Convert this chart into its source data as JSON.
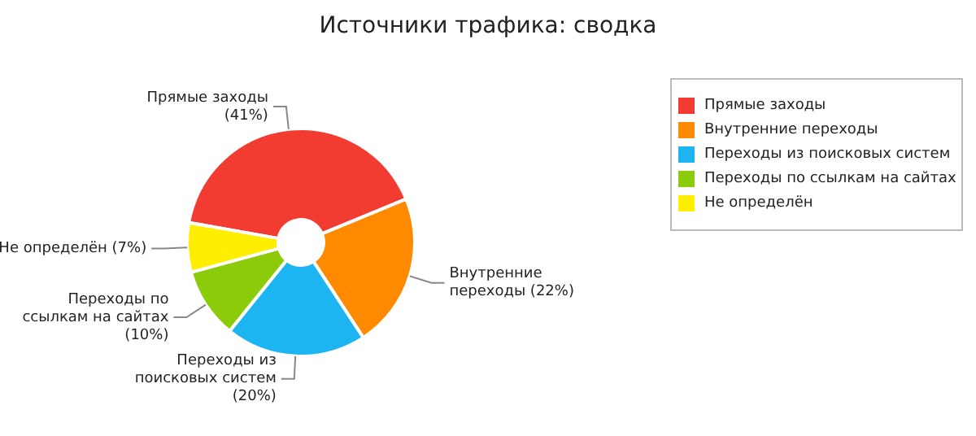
{
  "chart_data": {
    "type": "donut",
    "title": "Источники трафика: сводка",
    "categories": [
      "Прямые заходы",
      "Внутренние переходы",
      "Переходы из поисковых систем",
      "Переходы по ссылкам на сайтах",
      "Не определён"
    ],
    "values": [
      41,
      22,
      20,
      10,
      7
    ],
    "value_labels": [
      "(41%)",
      "(22%)",
      "(20%)",
      "(10%)",
      "(7%)"
    ],
    "colors": [
      "#f23c32",
      "#ff8a00",
      "#1cb5f2",
      "#8ccb0a",
      "#ffee00"
    ],
    "legend": "top right"
  }
}
